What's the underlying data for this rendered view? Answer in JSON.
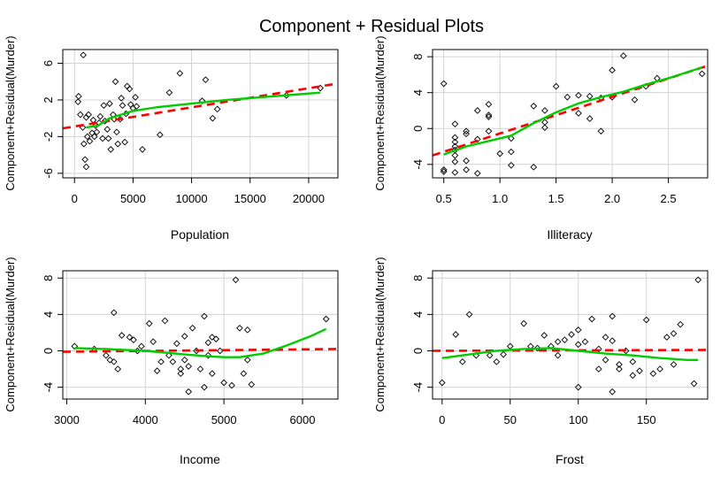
{
  "title": "Component + Residual Plots",
  "colors": {
    "points": "#000000",
    "linear_fit": "#ff0000",
    "smooth_fit": "#00cd00",
    "grid": "#d3d3d3"
  },
  "chart_data": [
    {
      "type": "scatter",
      "xlabel": "Population",
      "ylabel": "Component+Residual(Murder)",
      "xlim": [
        -1000,
        22500
      ],
      "ylim": [
        -6.5,
        7.5
      ],
      "xticks": [
        0,
        5000,
        10000,
        15000,
        20000
      ],
      "yticks": [
        -6,
        -2,
        2,
        6
      ],
      "grid": true,
      "points": [
        [
          300,
          1.8
        ],
        [
          350,
          2.4
        ],
        [
          500,
          0.4
        ],
        [
          700,
          -1.0
        ],
        [
          750,
          6.9
        ],
        [
          800,
          -2.8
        ],
        [
          900,
          -4.5
        ],
        [
          1000,
          -5.3
        ],
        [
          1000,
          0.1
        ],
        [
          1100,
          -2.0
        ],
        [
          1200,
          0.4
        ],
        [
          1300,
          -2.5
        ],
        [
          1500,
          -1.6
        ],
        [
          1600,
          -0.2
        ],
        [
          1700,
          -2.0
        ],
        [
          1800,
          -0.8
        ],
        [
          1900,
          -1.5
        ],
        [
          2100,
          -0.5
        ],
        [
          2200,
          0.2
        ],
        [
          2400,
          -2.2
        ],
        [
          2500,
          1.4
        ],
        [
          2600,
          -0.3
        ],
        [
          2800,
          -1.2
        ],
        [
          2900,
          -2.2
        ],
        [
          3000,
          1.6
        ],
        [
          3100,
          -3.4
        ],
        [
          3300,
          0.4
        ],
        [
          3400,
          -0.1
        ],
        [
          3500,
          4.0
        ],
        [
          3600,
          -1.5
        ],
        [
          3700,
          -2.8
        ],
        [
          3900,
          -0.1
        ],
        [
          4000,
          2.2
        ],
        [
          4100,
          1.4
        ],
        [
          4300,
          -2.6
        ],
        [
          4400,
          0.5
        ],
        [
          4500,
          3.5
        ],
        [
          4700,
          3.2
        ],
        [
          4800,
          1.5
        ],
        [
          5000,
          1.1
        ],
        [
          5200,
          2.3
        ],
        [
          5300,
          1.3
        ],
        [
          5800,
          -3.4
        ],
        [
          7300,
          -1.8
        ],
        [
          8100,
          2.8
        ],
        [
          9000,
          4.9
        ],
        [
          10900,
          1.9
        ],
        [
          11200,
          4.2
        ],
        [
          11800,
          0.0
        ],
        [
          12200,
          1.0
        ],
        [
          18100,
          2.5
        ],
        [
          21000,
          3.3
        ]
      ],
      "linear_fit": [
        [
          -1000,
          -1.1
        ],
        [
          22500,
          3.8
        ]
      ],
      "smooth_fit": [
        [
          1000,
          -1.0
        ],
        [
          2000,
          -0.8
        ],
        [
          3000,
          0.0
        ],
        [
          4000,
          0.4
        ],
        [
          5000,
          0.8
        ],
        [
          7000,
          1.2
        ],
        [
          10000,
          1.6
        ],
        [
          13000,
          2.0
        ],
        [
          16000,
          2.3
        ],
        [
          19000,
          2.6
        ],
        [
          21000,
          2.8
        ]
      ]
    },
    {
      "type": "scatter",
      "xlabel": "Illiteracy",
      "ylabel": "Component+Residual(Murder)",
      "xlim": [
        0.4,
        2.85
      ],
      "ylim": [
        -5.5,
        8.8
      ],
      "xticks": [
        0.5,
        1.0,
        1.5,
        2.0,
        2.5
      ],
      "xtick_labels": [
        "0.5",
        "1.0",
        "1.5",
        "2.0",
        "2.5"
      ],
      "yticks": [
        -4,
        0,
        4,
        8
      ],
      "grid": true,
      "points": [
        [
          0.5,
          5.0
        ],
        [
          0.5,
          -4.6
        ],
        [
          0.5,
          -4.8
        ],
        [
          0.6,
          -1.0
        ],
        [
          0.6,
          -1.5
        ],
        [
          0.6,
          -2.0
        ],
        [
          0.6,
          -2.4
        ],
        [
          0.6,
          -3.0
        ],
        [
          0.6,
          0.5
        ],
        [
          0.6,
          -4.9
        ],
        [
          0.6,
          -3.7
        ],
        [
          0.7,
          -0.3
        ],
        [
          0.7,
          -0.6
        ],
        [
          0.7,
          -3.6
        ],
        [
          0.7,
          -4.6
        ],
        [
          0.8,
          2.0
        ],
        [
          0.8,
          -1.2
        ],
        [
          0.8,
          -5.0
        ],
        [
          0.9,
          2.7
        ],
        [
          0.9,
          1.5
        ],
        [
          0.9,
          1.3
        ],
        [
          0.9,
          -0.3
        ],
        [
          1.0,
          -2.8
        ],
        [
          1.1,
          -1.1
        ],
        [
          1.1,
          -2.6
        ],
        [
          1.1,
          -4.1
        ],
        [
          1.3,
          -4.3
        ],
        [
          1.3,
          2.5
        ],
        [
          1.4,
          0.7
        ],
        [
          1.4,
          0.1
        ],
        [
          1.4,
          2.0
        ],
        [
          1.5,
          4.7
        ],
        [
          1.6,
          3.5
        ],
        [
          1.7,
          3.7
        ],
        [
          1.7,
          1.7
        ],
        [
          1.8,
          3.6
        ],
        [
          1.8,
          1.1
        ],
        [
          1.9,
          -0.3
        ],
        [
          1.9,
          3.4
        ],
        [
          2.0,
          6.5
        ],
        [
          2.0,
          3.5
        ],
        [
          2.1,
          8.1
        ],
        [
          2.2,
          3.2
        ],
        [
          2.3,
          4.7
        ],
        [
          2.4,
          5.6
        ],
        [
          2.8,
          6.1
        ]
      ],
      "linear_fit": [
        [
          0.4,
          -3.0
        ],
        [
          2.85,
          7.0
        ]
      ],
      "smooth_fit": [
        [
          0.5,
          -2.9
        ],
        [
          0.7,
          -2.0
        ],
        [
          0.9,
          -1.4
        ],
        [
          1.1,
          -0.8
        ],
        [
          1.3,
          0.6
        ],
        [
          1.5,
          1.8
        ],
        [
          1.7,
          2.8
        ],
        [
          1.9,
          3.5
        ],
        [
          2.1,
          4.1
        ],
        [
          2.3,
          4.9
        ],
        [
          2.5,
          5.6
        ],
        [
          2.8,
          6.8
        ]
      ]
    },
    {
      "type": "scatter",
      "xlabel": "Income",
      "ylabel": "Component+Residual(Murder)",
      "xlim": [
        2950,
        6450
      ],
      "ylim": [
        -5.3,
        8.8
      ],
      "xticks": [
        3000,
        4000,
        5000,
        6000
      ],
      "yticks": [
        -4,
        0,
        4,
        8
      ],
      "grid": true,
      "points": [
        [
          3100,
          0.5
        ],
        [
          3350,
          0.2
        ],
        [
          3500,
          -0.5
        ],
        [
          3550,
          -1.0
        ],
        [
          3600,
          4.2
        ],
        [
          3600,
          -1.2
        ],
        [
          3650,
          -2.0
        ],
        [
          3700,
          1.7
        ],
        [
          3800,
          1.5
        ],
        [
          3850,
          1.2
        ],
        [
          3900,
          0.0
        ],
        [
          3950,
          0.5
        ],
        [
          4050,
          3.0
        ],
        [
          4100,
          1.0
        ],
        [
          4150,
          -2.2
        ],
        [
          4200,
          -1.2
        ],
        [
          4250,
          3.3
        ],
        [
          4300,
          -0.5
        ],
        [
          4350,
          -1.2
        ],
        [
          4400,
          0.8
        ],
        [
          4450,
          -2.5
        ],
        [
          4450,
          -2.0
        ],
        [
          4500,
          1.6
        ],
        [
          4500,
          -1.0
        ],
        [
          4550,
          -1.7
        ],
        [
          4550,
          -4.5
        ],
        [
          4600,
          2.5
        ],
        [
          4650,
          0.0
        ],
        [
          4700,
          -2.0
        ],
        [
          4750,
          3.8
        ],
        [
          4750,
          -4.0
        ],
        [
          4800,
          0.9
        ],
        [
          4800,
          -0.5
        ],
        [
          4850,
          1.5
        ],
        [
          4850,
          -2.5
        ],
        [
          4900,
          1.3
        ],
        [
          4950,
          0.0
        ],
        [
          5000,
          -3.5
        ],
        [
          5100,
          -3.8
        ],
        [
          5150,
          7.8
        ],
        [
          5200,
          2.5
        ],
        [
          5250,
          -2.5
        ],
        [
          5300,
          -1.0
        ],
        [
          5300,
          2.3
        ],
        [
          5350,
          -3.7
        ],
        [
          6300,
          3.5
        ]
      ],
      "linear_fit": [
        [
          2950,
          -0.1
        ],
        [
          6450,
          0.2
        ]
      ],
      "smooth_fit": [
        [
          3100,
          0.3
        ],
        [
          3500,
          0.2
        ],
        [
          4000,
          0.0
        ],
        [
          4500,
          -0.4
        ],
        [
          4800,
          -0.6
        ],
        [
          5000,
          -0.7
        ],
        [
          5200,
          -0.7
        ],
        [
          5500,
          -0.3
        ],
        [
          5800,
          0.6
        ],
        [
          6100,
          1.6
        ],
        [
          6300,
          2.4
        ]
      ]
    },
    {
      "type": "scatter",
      "xlabel": "Frost",
      "ylabel": "Component+Residual(Murder)",
      "xlim": [
        -7,
        195
      ],
      "ylim": [
        -5.3,
        8.8
      ],
      "xticks": [
        0,
        50,
        100,
        150
      ],
      "yticks": [
        -4,
        0,
        4,
        8
      ],
      "grid": true,
      "points": [
        [
          0,
          -3.5
        ],
        [
          10,
          1.8
        ],
        [
          15,
          -1.2
        ],
        [
          20,
          4.0
        ],
        [
          25,
          -0.5
        ],
        [
          35,
          -0.5
        ],
        [
          40,
          -1.2
        ],
        [
          45,
          -0.4
        ],
        [
          50,
          0.5
        ],
        [
          60,
          3.0
        ],
        [
          65,
          0.5
        ],
        [
          70,
          0.3
        ],
        [
          75,
          1.7
        ],
        [
          80,
          0.5
        ],
        [
          85,
          1.0
        ],
        [
          85,
          -0.5
        ],
        [
          90,
          1.2
        ],
        [
          95,
          1.8
        ],
        [
          100,
          2.3
        ],
        [
          100,
          0.7
        ],
        [
          100,
          -4.0
        ],
        [
          105,
          1.0
        ],
        [
          110,
          3.5
        ],
        [
          115,
          0.2
        ],
        [
          115,
          -2.0
        ],
        [
          120,
          1.5
        ],
        [
          120,
          -1.0
        ],
        [
          125,
          3.8
        ],
        [
          125,
          -4.5
        ],
        [
          125,
          1.1
        ],
        [
          130,
          -1.5
        ],
        [
          130,
          -2.0
        ],
        [
          135,
          0.0
        ],
        [
          140,
          -1.2
        ],
        [
          140,
          -2.7
        ],
        [
          145,
          -2.2
        ],
        [
          150,
          3.4
        ],
        [
          155,
          -2.5
        ],
        [
          160,
          -2.0
        ],
        [
          165,
          1.5
        ],
        [
          170,
          1.9
        ],
        [
          170,
          -1.5
        ],
        [
          175,
          2.9
        ],
        [
          185,
          -3.6
        ],
        [
          188,
          7.8
        ]
      ],
      "linear_fit": [
        [
          -7,
          0.0
        ],
        [
          195,
          0.1
        ]
      ],
      "smooth_fit": [
        [
          0,
          -0.8
        ],
        [
          20,
          -0.4
        ],
        [
          40,
          0.0
        ],
        [
          60,
          0.2
        ],
        [
          80,
          0.3
        ],
        [
          100,
          0.0
        ],
        [
          120,
          -0.3
        ],
        [
          140,
          -0.5
        ],
        [
          160,
          -0.8
        ],
        [
          180,
          -1.0
        ],
        [
          188,
          -1.0
        ]
      ]
    }
  ]
}
